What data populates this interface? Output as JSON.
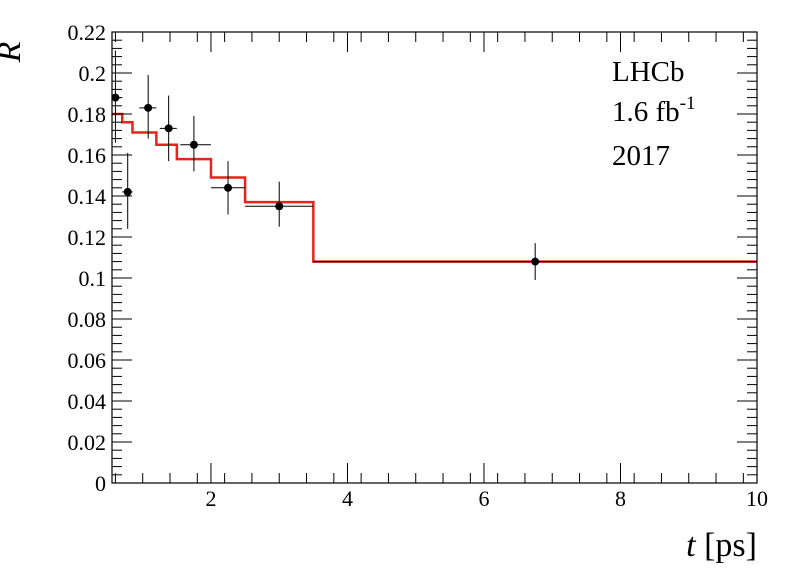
{
  "chart_data": {
    "type": "scatter",
    "title": "",
    "xlabel_var": "t",
    "xlabel_unit": " [ps]",
    "ylabel": "R",
    "xlim": [
      0.55,
      10
    ],
    "ylim": [
      0,
      0.22
    ],
    "x_ticks": [
      2,
      4,
      6,
      8,
      10
    ],
    "y_ticks": [
      0,
      0.02,
      0.04,
      0.06,
      0.08,
      0.1,
      0.12,
      0.14,
      0.16,
      0.18,
      0.2,
      0.22
    ],
    "y_tick_labels": [
      "0",
      "0.02",
      "0.04",
      "0.06",
      "0.08",
      "0.1",
      "0.12",
      "0.14",
      "0.16",
      "0.18",
      "0.2",
      "0.22"
    ],
    "x_tick_labels": [
      "2",
      "4",
      "6",
      "8",
      "10"
    ],
    "grid": false,
    "annotations": {
      "experiment": "LHCb",
      "lumi_value": "1.6 fb",
      "lumi_exp": "-1",
      "year": "2017"
    },
    "points": [
      {
        "x": 0.6,
        "xlo": 0.55,
        "xhi": 0.7,
        "y": 0.188,
        "ylo": 0.166,
        "yhi": 0.211
      },
      {
        "x": 0.78,
        "xlo": 0.7,
        "xhi": 0.85,
        "y": 0.142,
        "ylo": 0.124,
        "yhi": 0.161
      },
      {
        "x": 1.08,
        "xlo": 0.95,
        "xhi": 1.2,
        "y": 0.183,
        "ylo": 0.168,
        "yhi": 0.199
      },
      {
        "x": 1.38,
        "xlo": 1.25,
        "xhi": 1.5,
        "y": 0.173,
        "ylo": 0.157,
        "yhi": 0.189
      },
      {
        "x": 1.75,
        "xlo": 1.55,
        "xhi": 2.0,
        "y": 0.165,
        "ylo": 0.152,
        "yhi": 0.179
      },
      {
        "x": 2.25,
        "xlo": 2.0,
        "xhi": 2.5,
        "y": 0.144,
        "ylo": 0.131,
        "yhi": 0.157
      },
      {
        "x": 3.0,
        "xlo": 2.5,
        "xhi": 3.5,
        "y": 0.135,
        "ylo": 0.125,
        "yhi": 0.147
      },
      {
        "x": 6.75,
        "xlo": 3.5,
        "xhi": 10.0,
        "y": 0.108,
        "ylo": 0.099,
        "yhi": 0.117
      }
    ],
    "fit_steps": [
      {
        "xlo": 0.55,
        "xhi": 0.7,
        "y": 0.18
      },
      {
        "xlo": 0.7,
        "xhi": 0.85,
        "y": 0.176
      },
      {
        "xlo": 0.85,
        "xhi": 1.2,
        "y": 0.171
      },
      {
        "xlo": 1.2,
        "xhi": 1.5,
        "y": 0.165
      },
      {
        "xlo": 1.5,
        "xhi": 2.0,
        "y": 0.158
      },
      {
        "xlo": 2.0,
        "xhi": 2.5,
        "y": 0.149
      },
      {
        "xlo": 2.5,
        "xhi": 3.5,
        "y": 0.137
      },
      {
        "xlo": 3.5,
        "xhi": 10.0,
        "y": 0.108
      }
    ],
    "colors": {
      "points": "#000000",
      "fit": "#e8221c",
      "axis": "#000000"
    }
  }
}
